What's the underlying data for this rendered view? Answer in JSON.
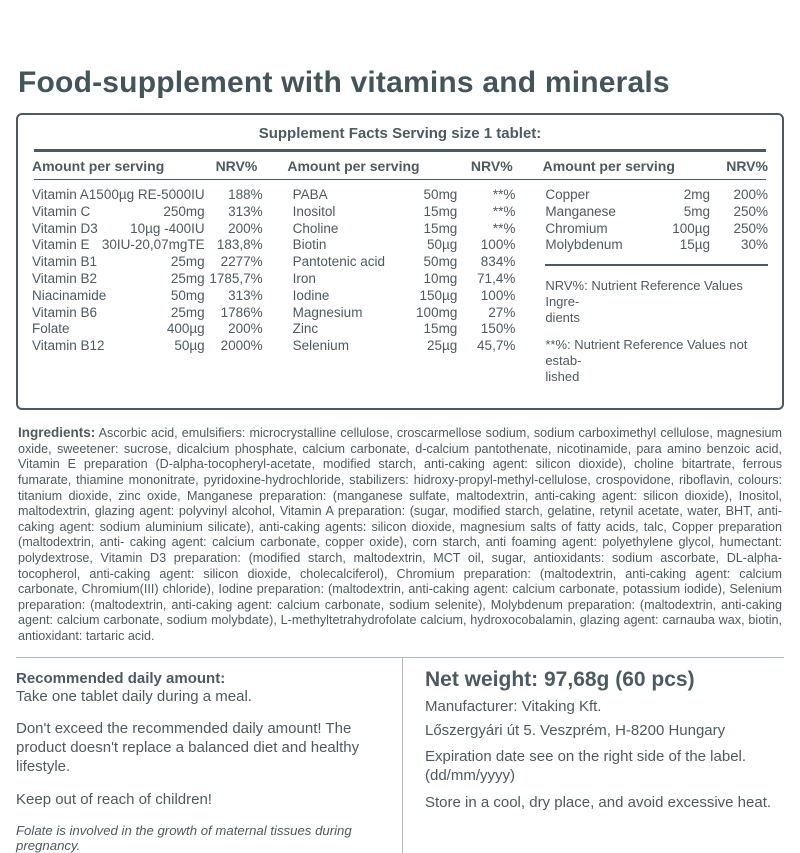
{
  "page_title": "Food-supplement with vitamins and minerals",
  "supplement_facts": {
    "title": "Supplement Facts Serving size 1 tablet:",
    "header": {
      "amount_label": "Amount per serving",
      "nrv_label": "NRV%"
    },
    "groups": [
      {
        "rows": [
          {
            "name": "Vitamin A",
            "amount": "1500µg RE-5000IU",
            "nrv": "188%"
          },
          {
            "name": "Vitamin C",
            "amount": "250mg",
            "nrv": "313%"
          },
          {
            "name": "Vitamin D3",
            "amount": "10µg -400IU",
            "nrv": "200%"
          },
          {
            "name": "Vitamin E",
            "amount": "30IU-20,07mgTE",
            "nrv": "183,8%"
          },
          {
            "name": "Vitamin B1",
            "amount": "25mg",
            "nrv": "2277%"
          },
          {
            "name": "Vitamin B2",
            "amount": "25mg",
            "nrv": "1785,7%"
          },
          {
            "name": "Niacinamide",
            "amount": "50mg",
            "nrv": "313%"
          },
          {
            "name": "Vitamin B6",
            "amount": "25mg",
            "nrv": "1786%"
          },
          {
            "name": "Folate",
            "amount": "400µg",
            "nrv": "200%"
          },
          {
            "name": "Vitamin B12",
            "amount": "50µg",
            "nrv": "2000%"
          }
        ]
      },
      {
        "rows": [
          {
            "name": "PABA",
            "amount": "50mg",
            "nrv": "**%"
          },
          {
            "name": "Inositol",
            "amount": "15mg",
            "nrv": "**%"
          },
          {
            "name": "Choline",
            "amount": "15mg",
            "nrv": "**%"
          },
          {
            "name": "Biotin",
            "amount": "50µg",
            "nrv": "100%"
          },
          {
            "name": "Pantotenic acid",
            "amount": "50mg",
            "nrv": "834%"
          },
          {
            "name": "Iron",
            "amount": "10mg",
            "nrv": "71,4%"
          },
          {
            "name": "Iodine",
            "amount": "150µg",
            "nrv": "100%"
          },
          {
            "name": "Magnesium",
            "amount": "100mg",
            "nrv": "27%"
          },
          {
            "name": "Zinc",
            "amount": "15mg",
            "nrv": "150%"
          },
          {
            "name": "Selenium",
            "amount": "25µg",
            "nrv": "45,7%"
          }
        ]
      },
      {
        "rows": [
          {
            "name": "Copper",
            "amount": "2mg",
            "nrv": "200%"
          },
          {
            "name": "Manganese",
            "amount": "5mg",
            "nrv": "250%"
          },
          {
            "name": "Chromium",
            "amount": "100µg",
            "nrv": "250%"
          },
          {
            "name": "Molybdenum",
            "amount": "15µg",
            "nrv": "30%"
          }
        ]
      }
    ],
    "footnotes": {
      "nrv_lines": [
        "NRV%: Nutrient Reference Values Ingre-",
        "dients"
      ],
      "established_lines": [
        "**%: Nutrient Reference Values not estab-",
        "lished"
      ]
    }
  },
  "ingredients": {
    "label": "Ingredients:",
    "text": " Ascorbic acid, emulsifiers: microcrystalline cellulose, croscarmellose sodium, sodium carboximethyl cellulose, magnesium oxide, sweetener: sucrose, dicalcium phosphate, calcium carbonate, d-calcium pantothenate, nicotinamide, para amino benzoic acid, Vitamin E preparation (D-alpha-tocopheryl-acetate, modified starch, anti-caking agent: silicon dioxide), choline bitartrate, ferrous fumarate, thiamine mononitrate, pyridoxine-hydrochloride, stabilizers: hidroxy-propyl-methyl-cellulose, crospovidone, riboflavin, colours: titanium dioxide, zinc oxide, Manganese preparation: (manganese sulfate, maltodextrin, anti-caking agent: silicon dioxide), Inositol, maltodextrin, glazing agent:  polyvinyl alcohol, Vitamin A preparation: (sugar, modified starch, gelatine, retynil acetate, water, BHT, anti-caking agent: sodium aluminium silicate), anti-caking agents: silicon dioxide, magnesium salts of fatty acids, talc, Copper preparation (maltodextrin, anti- caking agent: calcium carbonate, copper oxide), corn starch, anti foaming agent: polyethylene glycol, humectant: polydextrose, Vitamin D3 preparation: (modified starch, maltodextrin, MCT oil, sugar, antioxidants: sodium ascorbate, DL-alpha-tocopherol, anti-caking agent: silicon dioxide, cholecalciferol), Chromium preparation: (maltodextrin, anti-caking agent: calcium carbonate, Chromium(III) chloride), Iodine preparation: (maltodextrin, anti-caking agent: calcium carbonate, potassium iodide), Selenium preparation: (maltodextrin, anti-caking agent: calcium carbonate, sodium selenite), Molybdenum preparation: (maltodextrin, anti-caking agent: calcium carbonate, sodium molybdate), L-methyltetrahydrofolate calcium, hydroxocobalamin, glazing agent: carnauba wax, biotin, antioxidant: tartaric acid."
  },
  "bottom_left": {
    "heading": "Recommended daily amount:",
    "take_line": "Take one tablet daily during a meal.",
    "warning": "Don't exceed the recommended daily amount! The product doesn't replace a balanced diet and healthy lifestyle.",
    "children_line": "Keep out of reach of children!",
    "folate_note": "Folate is involved in the growth of maternal tissues during pregnancy."
  },
  "bottom_right": {
    "net_weight": "Net weight: 97,68g (60 pcs)",
    "manufacturer": "Manufacturer: Vitaking Kft.",
    "address": "Lőszergyári út 5. Veszprém, H-8200 Hungary",
    "expiration": "Expiration date see on the right side of the label. (dd/mm/yyyy)",
    "storage": "Store in a cool, dry place, and avoid excessive heat."
  },
  "colors": {
    "text": "#4c5b61",
    "heading": "#44545b",
    "border": "#4b5a60",
    "light_rule": "#b3babc"
  }
}
